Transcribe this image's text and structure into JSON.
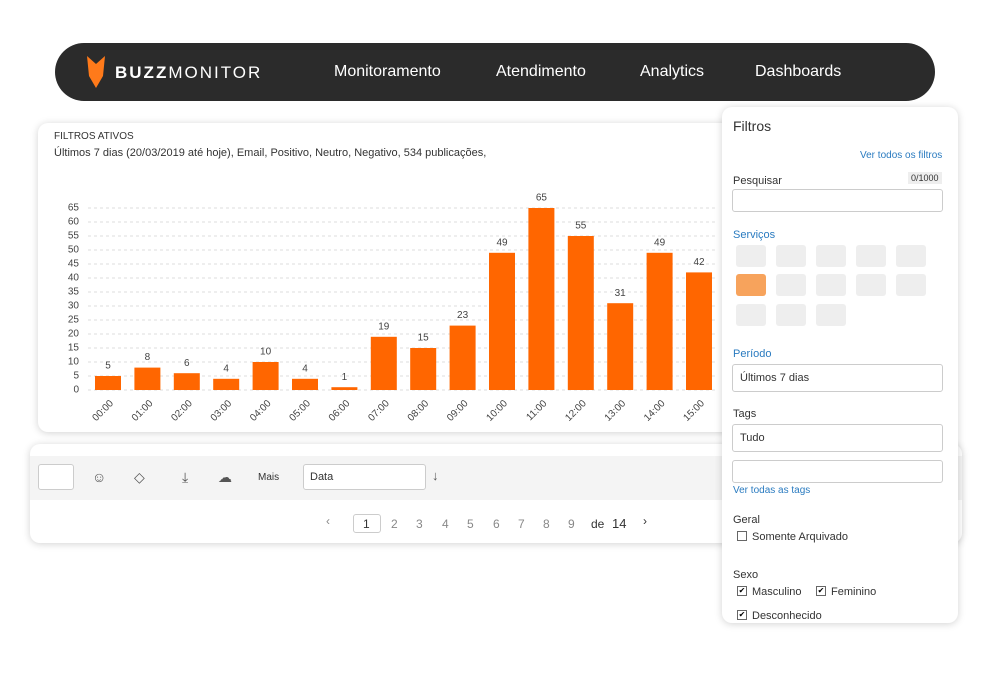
{
  "nav": {
    "brand_bold": "BUZZ",
    "brand_light": "MONITOR",
    "items": [
      "Monitoramento",
      "Atendimento",
      "Analytics",
      "Dashboards"
    ]
  },
  "chart_panel": {
    "title": "FILTROS ATIVOS",
    "subtitle": "Últimos 7 dias (20/03/2019 até hoje), Email, Positivo, Neutro, Negativo, 534 publicações,"
  },
  "chart_data": {
    "type": "bar",
    "categories": [
      "00:00",
      "01:00",
      "02:00",
      "03:00",
      "04:00",
      "05:00",
      "06:00",
      "07:00",
      "08:00",
      "09:00",
      "10:00",
      "11:00",
      "12:00",
      "13:00",
      "14:00",
      "15:00"
    ],
    "values": [
      5,
      8,
      6,
      4,
      10,
      4,
      1,
      19,
      15,
      23,
      49,
      65,
      55,
      31,
      49,
      42
    ],
    "color": "#ff6600",
    "ylim": [
      0,
      65
    ],
    "yticks": [
      0,
      5,
      10,
      15,
      20,
      25,
      30,
      35,
      40,
      45,
      50,
      55,
      60,
      65
    ],
    "grid": true
  },
  "toolbar": {
    "more": "Mais",
    "sort": "Data"
  },
  "pagination": {
    "pages": [
      1,
      2,
      3,
      4,
      5,
      6,
      7,
      8,
      9
    ],
    "of": "de",
    "total": 14
  },
  "filters": {
    "title": "Filtros",
    "see_all": "Ver todos os filtros",
    "search_label": "Pesquisar",
    "search_count": "0/1000",
    "services_label": "Serviços",
    "period_label": "Período",
    "period_value": "Últimos 7 dias",
    "tags_label": "Tags",
    "tags_value": "Tudo",
    "see_all_tags": "Ver todas as tags",
    "general_label": "Geral",
    "general_options": [
      "Somente Arquivado"
    ],
    "sex_label": "Sexo",
    "sex_options": [
      "Masculino",
      "Feminino",
      "Desconhecido"
    ]
  }
}
